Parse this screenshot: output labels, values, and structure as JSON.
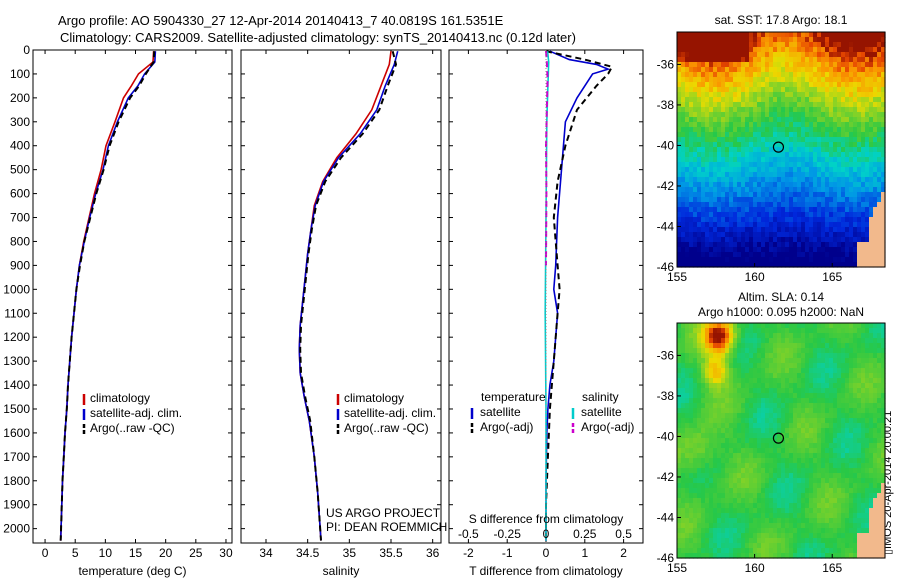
{
  "header": {
    "line1": "Argo profile: AO 5904330_27 12-Apr-2014 20140413_7 40.0819S 161.5351E",
    "line2": "Climatology: CARS2009. Satellite-adjusted climatology: synTS_20140413.nc (0.12d later)"
  },
  "credit": {
    "line1": "US ARGO PROJECT",
    "line2": "PI: DEAN ROEMMICH"
  },
  "stamp": "▯IMOS 20-Apr-2014 20:00:21",
  "colors": {
    "climatology": "#cc0000",
    "satellite": "#0000cc",
    "argo": "#000000",
    "satellite_s": "#00cccc",
    "argo_s": "#cc00cc",
    "land": "#f2b98c"
  },
  "icons": [
    "circle-marker-icon"
  ],
  "chart_data": [
    {
      "type": "line",
      "xlabel": "temperature (deg C)",
      "xlim": [
        -2,
        31
      ],
      "ylim": [
        2060,
        0
      ],
      "xticks": [
        0,
        5,
        10,
        15,
        20,
        25,
        30
      ],
      "yticks": [
        0,
        100,
        200,
        300,
        400,
        500,
        600,
        700,
        800,
        900,
        1000,
        1100,
        1200,
        1300,
        1400,
        1500,
        1600,
        1700,
        1800,
        1900,
        2000
      ],
      "legend": [
        "climatology",
        "satellite-adj. clim.",
        "Argo(..raw -QC)"
      ],
      "series": [
        {
          "name": "climatology",
          "style": "solid",
          "color": "#cc0000",
          "x": [
            18.0,
            17.9,
            15.5,
            14.3,
            13.0,
            11.6,
            10.1,
            9.3,
            8.2,
            7.3,
            6.4,
            5.7,
            5.2,
            4.8,
            4.4,
            4.1,
            3.8,
            3.6,
            3.3,
            3.1,
            2.9,
            2.6
          ],
          "y": [
            5,
            50,
            100,
            150,
            200,
            300,
            400,
            500,
            600,
            700,
            800,
            900,
            1000,
            1100,
            1200,
            1300,
            1400,
            1500,
            1600,
            1700,
            1800,
            2050
          ]
        },
        {
          "name": "satellite-adj. clim.",
          "style": "solid",
          "color": "#0000cc",
          "x": [
            18.3,
            18.2,
            16.5,
            15.4,
            13.8,
            12.0,
            10.5,
            9.6,
            8.4,
            7.4,
            6.5,
            5.7,
            5.2,
            4.8,
            4.4,
            4.1,
            3.8,
            3.6,
            3.3,
            3.1,
            2.9,
            2.6
          ],
          "y": [
            5,
            50,
            100,
            150,
            200,
            300,
            400,
            500,
            600,
            700,
            800,
            900,
            1000,
            1100,
            1200,
            1300,
            1400,
            1500,
            1600,
            1700,
            1800,
            2050
          ]
        },
        {
          "name": "Argo(..raw -QC)",
          "style": "dashed",
          "color": "#000000",
          "x": [
            18.1,
            18.0,
            16.7,
            15.6,
            14.1,
            12.2,
            10.7,
            9.7,
            8.5,
            7.5,
            6.5,
            5.8,
            5.2,
            4.8,
            4.4,
            4.1,
            3.8,
            3.6,
            3.3,
            3.1,
            2.9,
            2.6
          ],
          "y": [
            5,
            50,
            100,
            150,
            200,
            300,
            400,
            500,
            600,
            700,
            800,
            900,
            1000,
            1100,
            1200,
            1300,
            1400,
            1500,
            1600,
            1700,
            1800,
            2050
          ]
        }
      ]
    },
    {
      "type": "line",
      "xlabel": "salinity",
      "xlim": [
        33.7,
        36.1
      ],
      "ylim": [
        2060,
        0
      ],
      "xticks": [
        34,
        34.5,
        35,
        35.5,
        36
      ],
      "legend": [
        "climatology",
        "satellite-adj. clim.",
        "Argo(..raw -QC)"
      ],
      "series": [
        {
          "name": "climatology",
          "style": "solid",
          "color": "#cc0000",
          "x": [
            35.5,
            35.48,
            35.38,
            35.27,
            35.08,
            34.85,
            34.68,
            34.58,
            34.54,
            34.5,
            34.47,
            34.44,
            34.41,
            34.4,
            34.41,
            34.46,
            34.52,
            34.58,
            34.62,
            34.66
          ],
          "y": [
            5,
            60,
            150,
            250,
            350,
            450,
            550,
            650,
            750,
            850,
            950,
            1050,
            1150,
            1250,
            1350,
            1450,
            1550,
            1700,
            1850,
            2050
          ]
        },
        {
          "name": "satellite-adj. clim.",
          "style": "solid",
          "color": "#0000cc",
          "x": [
            35.58,
            35.54,
            35.43,
            35.33,
            35.13,
            34.87,
            34.69,
            34.59,
            34.54,
            34.5,
            34.47,
            34.44,
            34.41,
            34.4,
            34.41,
            34.46,
            34.52,
            34.58,
            34.62,
            34.66
          ],
          "y": [
            5,
            60,
            150,
            250,
            350,
            450,
            550,
            650,
            750,
            850,
            950,
            1050,
            1150,
            1250,
            1350,
            1450,
            1550,
            1700,
            1850,
            2050
          ]
        },
        {
          "name": "Argo(..raw -QC)",
          "style": "dashed",
          "color": "#000000",
          "x": [
            35.52,
            35.56,
            35.46,
            35.36,
            35.16,
            34.9,
            34.71,
            34.6,
            34.55,
            34.51,
            34.48,
            34.45,
            34.42,
            34.41,
            34.42,
            34.47,
            34.53,
            34.58,
            34.62,
            34.66
          ],
          "y": [
            5,
            60,
            150,
            250,
            350,
            450,
            550,
            650,
            750,
            850,
            950,
            1050,
            1150,
            1250,
            1350,
            1450,
            1550,
            1700,
            1850,
            2050
          ]
        }
      ]
    },
    {
      "type": "line",
      "xlabel": "T difference from climatology",
      "xlabel_top": "S difference from climatology",
      "xlim": [
        -2.5,
        2.5
      ],
      "ylim": [
        2060,
        0
      ],
      "xticks": [
        -2,
        -1,
        0,
        1,
        2
      ],
      "xticks_s": [
        -0.5,
        -0.25,
        0,
        0.25,
        0.5
      ],
      "legend_headers": [
        "temperature",
        "salinity"
      ],
      "legend": [
        "satellite",
        "Argo(-adj)",
        "satellite",
        "Argo(-adj)"
      ],
      "series": [
        {
          "name": "satellite",
          "group": "temperature",
          "style": "solid",
          "color": "#0000cc",
          "x": [
            0.1,
            0.6,
            1.3,
            1.6,
            1.2,
            0.8,
            0.5,
            0.4,
            0.3,
            0.25,
            0.2,
            0.3,
            0.25,
            0.2,
            0.1,
            0.05,
            0.02,
            0.0,
            0.0
          ],
          "y": [
            5,
            40,
            60,
            80,
            100,
            200,
            300,
            500,
            700,
            900,
            1000,
            1100,
            1200,
            1300,
            1400,
            1500,
            1600,
            1800,
            2050
          ]
        },
        {
          "name": "Argo(-adj)",
          "group": "temperature",
          "style": "dashed",
          "color": "#000000",
          "x": [
            0.0,
            1.0,
            1.7,
            1.6,
            1.3,
            0.8,
            0.5,
            0.3,
            0.2,
            0.3,
            0.35,
            0.3,
            0.2,
            0.1,
            0.05,
            0.0,
            0.0
          ],
          "y": [
            5,
            40,
            70,
            100,
            150,
            250,
            400,
            550,
            700,
            900,
            1000,
            1100,
            1300,
            1500,
            1700,
            1900,
            2050
          ]
        },
        {
          "name": "satellite",
          "group": "salinity",
          "style": "solid",
          "color": "#00cccc",
          "x": [
            0.04,
            0.07,
            0.05,
            0.02,
            0.01,
            0.0,
            -0.01,
            -0.02,
            -0.01,
            0.0,
            0.0,
            0.0,
            0.0
          ],
          "y": [
            5,
            50,
            150,
            300,
            500,
            700,
            900,
            1100,
            1300,
            1500,
            1700,
            1900,
            2050
          ]
        },
        {
          "name": "Argo(-adj)",
          "group": "salinity",
          "style": "dashed",
          "color": "#cc00cc",
          "x": [
            0.0,
            0.02,
            0.04,
            0.02,
            0.0,
            0.01,
            0.0
          ],
          "y": [
            5,
            50,
            120,
            250,
            400,
            600,
            900
          ]
        }
      ]
    },
    {
      "type": "heatmap",
      "title": "sat. SST: 17.8 Argo: 18.1",
      "xticks": [
        155,
        160,
        165
      ],
      "yticks": [
        -36,
        -38,
        -40,
        -42,
        -44,
        -46
      ],
      "xlim": [
        155,
        168.4
      ],
      "ylim": [
        -46,
        -34.4
      ],
      "marker": {
        "lon": 161.5351,
        "lat": -40.0819
      }
    },
    {
      "type": "heatmap",
      "title": "Altim. SLA: 0.14",
      "subtitle": "Argo h1000: 0.095 h2000: NaN",
      "xticks": [
        155,
        160,
        165
      ],
      "yticks": [
        -36,
        -38,
        -40,
        -42,
        -44,
        -46
      ],
      "xlim": [
        155,
        168.4
      ],
      "ylim": [
        -46,
        -34.4
      ],
      "marker": {
        "lon": 161.5351,
        "lat": -40.0819
      }
    }
  ]
}
